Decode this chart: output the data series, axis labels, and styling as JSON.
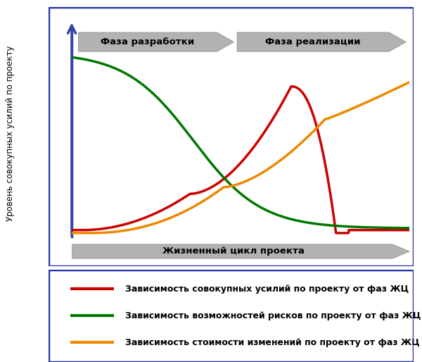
{
  "ylabel": "Уровень совокупных усилий по проекту",
  "xlabel": "Жизненный цикл проекта",
  "phase1_label": "Фаза разработки",
  "phase2_label": "Фаза реализации",
  "legend_red": "Зависимость совокупных усилий по проекту от фаз ЖЦ",
  "legend_green": "Зависимость возможностей рисков по проекту от фаз ЖЦ",
  "legend_orange": "Зависимость стоимости изменений по проекту от фаз ЖЦ",
  "red_color": "#cc0000",
  "green_color": "#007700",
  "orange_color": "#ee8800",
  "arrow_color": "#3344aa",
  "border_color": "#2233aa",
  "phase_color": "#aaaaaa",
  "background_color": "#ffffff",
  "curve_lw": 2.5
}
